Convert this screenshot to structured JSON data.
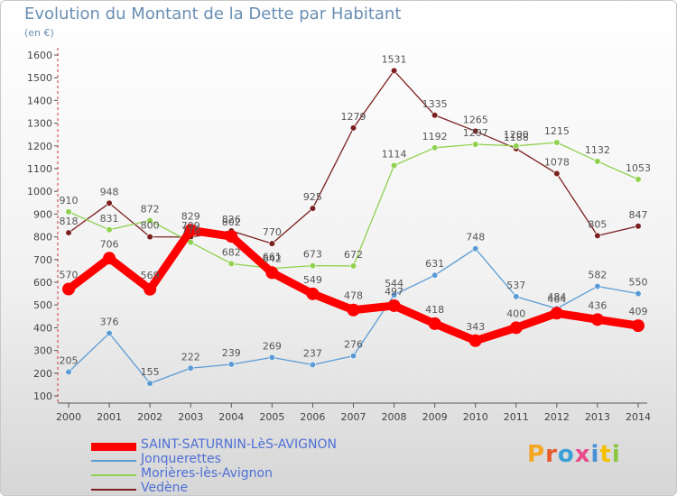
{
  "title": "Evolution du Montant de la Dette par Habitant",
  "subtitle": "(en €)",
  "logo_text": "Proxiti",
  "chart_data": {
    "type": "line",
    "x": [
      "2000",
      "2001",
      "2002",
      "2003",
      "2004",
      "2005",
      "2006",
      "2007",
      "2008",
      "2009",
      "2010",
      "2011",
      "2012",
      "2013",
      "2014"
    ],
    "ylim": [
      100,
      1600
    ],
    "yticks": [
      "100",
      "200",
      "300",
      "400",
      "500",
      "600",
      "700",
      "800",
      "900",
      "1000",
      "1100",
      "1200",
      "1300",
      "1400",
      "1500",
      "1600"
    ],
    "grid": false,
    "legend_position": "bottom",
    "series": [
      {
        "name": "SAINT-SATURNIN-LèS-AVIGNON",
        "color": "#ff0000",
        "values": [
          570,
          706,
          569,
          829,
          802,
          642,
          549,
          478,
          497,
          418,
          343,
          400,
          464,
          436,
          409
        ]
      },
      {
        "name": "Jonquerettes",
        "color": "#5b9bd5",
        "values": [
          205,
          376,
          155,
          222,
          239,
          269,
          237,
          276,
          544,
          631,
          748,
          537,
          484,
          582,
          550
        ]
      },
      {
        "name": "Morières-lès-Avignon",
        "color": "#8fd14f",
        "values": [
          910,
          831,
          872,
          776,
          682,
          661,
          673,
          672,
          1114,
          1192,
          1207,
          1200,
          1215,
          1132,
          1053
        ]
      },
      {
        "name": "Vedène",
        "color": "#7b1f1f",
        "values": [
          818,
          948,
          800,
          799,
          826,
          770,
          925,
          1279,
          1531,
          1335,
          1265,
          1188,
          1078,
          805,
          847
        ]
      }
    ]
  }
}
